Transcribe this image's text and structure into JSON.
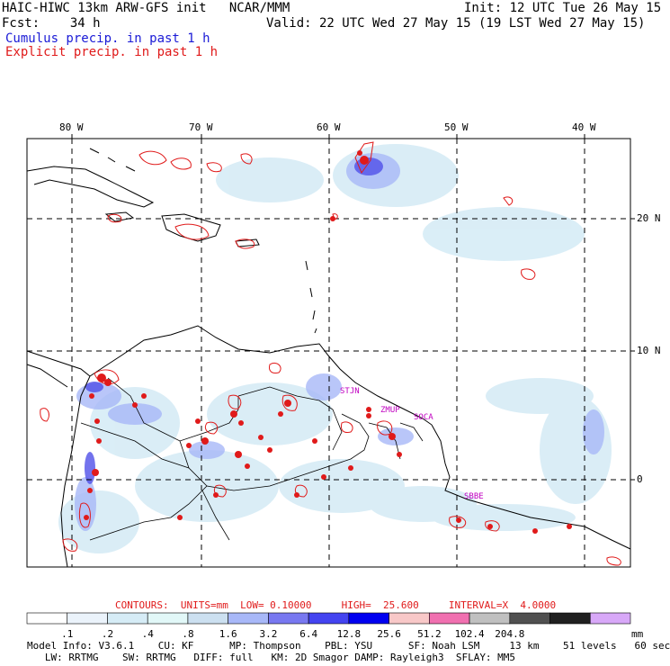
{
  "header": {
    "title": "HAIC-HIWC 13km ARW-GFS init   NCAR/MMM",
    "init": "Init: 12 UTC Tue 26 May 15",
    "fcst": "Fcst:    34 h",
    "valid": "Valid: 22 UTC Wed 27 May 15 (19 LST Wed 27 May 15)"
  },
  "legend": {
    "cumulus": "Cumulus precip. in past 1 h",
    "explicit": "Explicit precip. in past 1 h"
  },
  "map": {
    "lon_labels": [
      "80 W",
      "70 W",
      "60 W",
      "50 W",
      "40 W"
    ],
    "lat_labels": [
      "20 N",
      "10 N",
      "0"
    ],
    "stations": [
      "STJN",
      "ZMUP",
      "SOCA",
      "SBBE"
    ],
    "colors": {
      "cumulus": "#3a3af0",
      "explicit": "#e01a1a",
      "station": "#c000c0",
      "coast": "#000000"
    }
  },
  "contours_line": "CONTOURS:  UNITS=mm  LOW= 0.10000     HIGH=  25.600     INTERVAL=X  4.0000",
  "colorbar": {
    "unit": "mm",
    "labels": [
      ".1",
      ".2",
      ".4",
      ".8",
      "1.6",
      "3.2",
      "6.4",
      "12.8",
      "25.6",
      "51.2",
      "102.4",
      "204.8"
    ],
    "colors": [
      "#ffffff",
      "#ebf3fb",
      "#d6ecf6",
      "#e2f8f8",
      "#cce0f0",
      "#a8b8f8",
      "#7878f0",
      "#4444f0",
      "#0000f0",
      "#f8c8c8",
      "#f070b0",
      "#c0c0c0",
      "#505050",
      "#202020",
      "#d8a8f8"
    ]
  },
  "footer": {
    "line1": "Model Info: V3.6.1    CU: KF      MP: Thompson    PBL: YSU      SF: Noah LSM     13 km    51 levels   60 sec",
    "line2": "   LW: RRTMG    SW: RRTMG   DIFF: full   KM: 2D Smagor DAMP: Rayleigh3  SFLAY: MM5"
  }
}
